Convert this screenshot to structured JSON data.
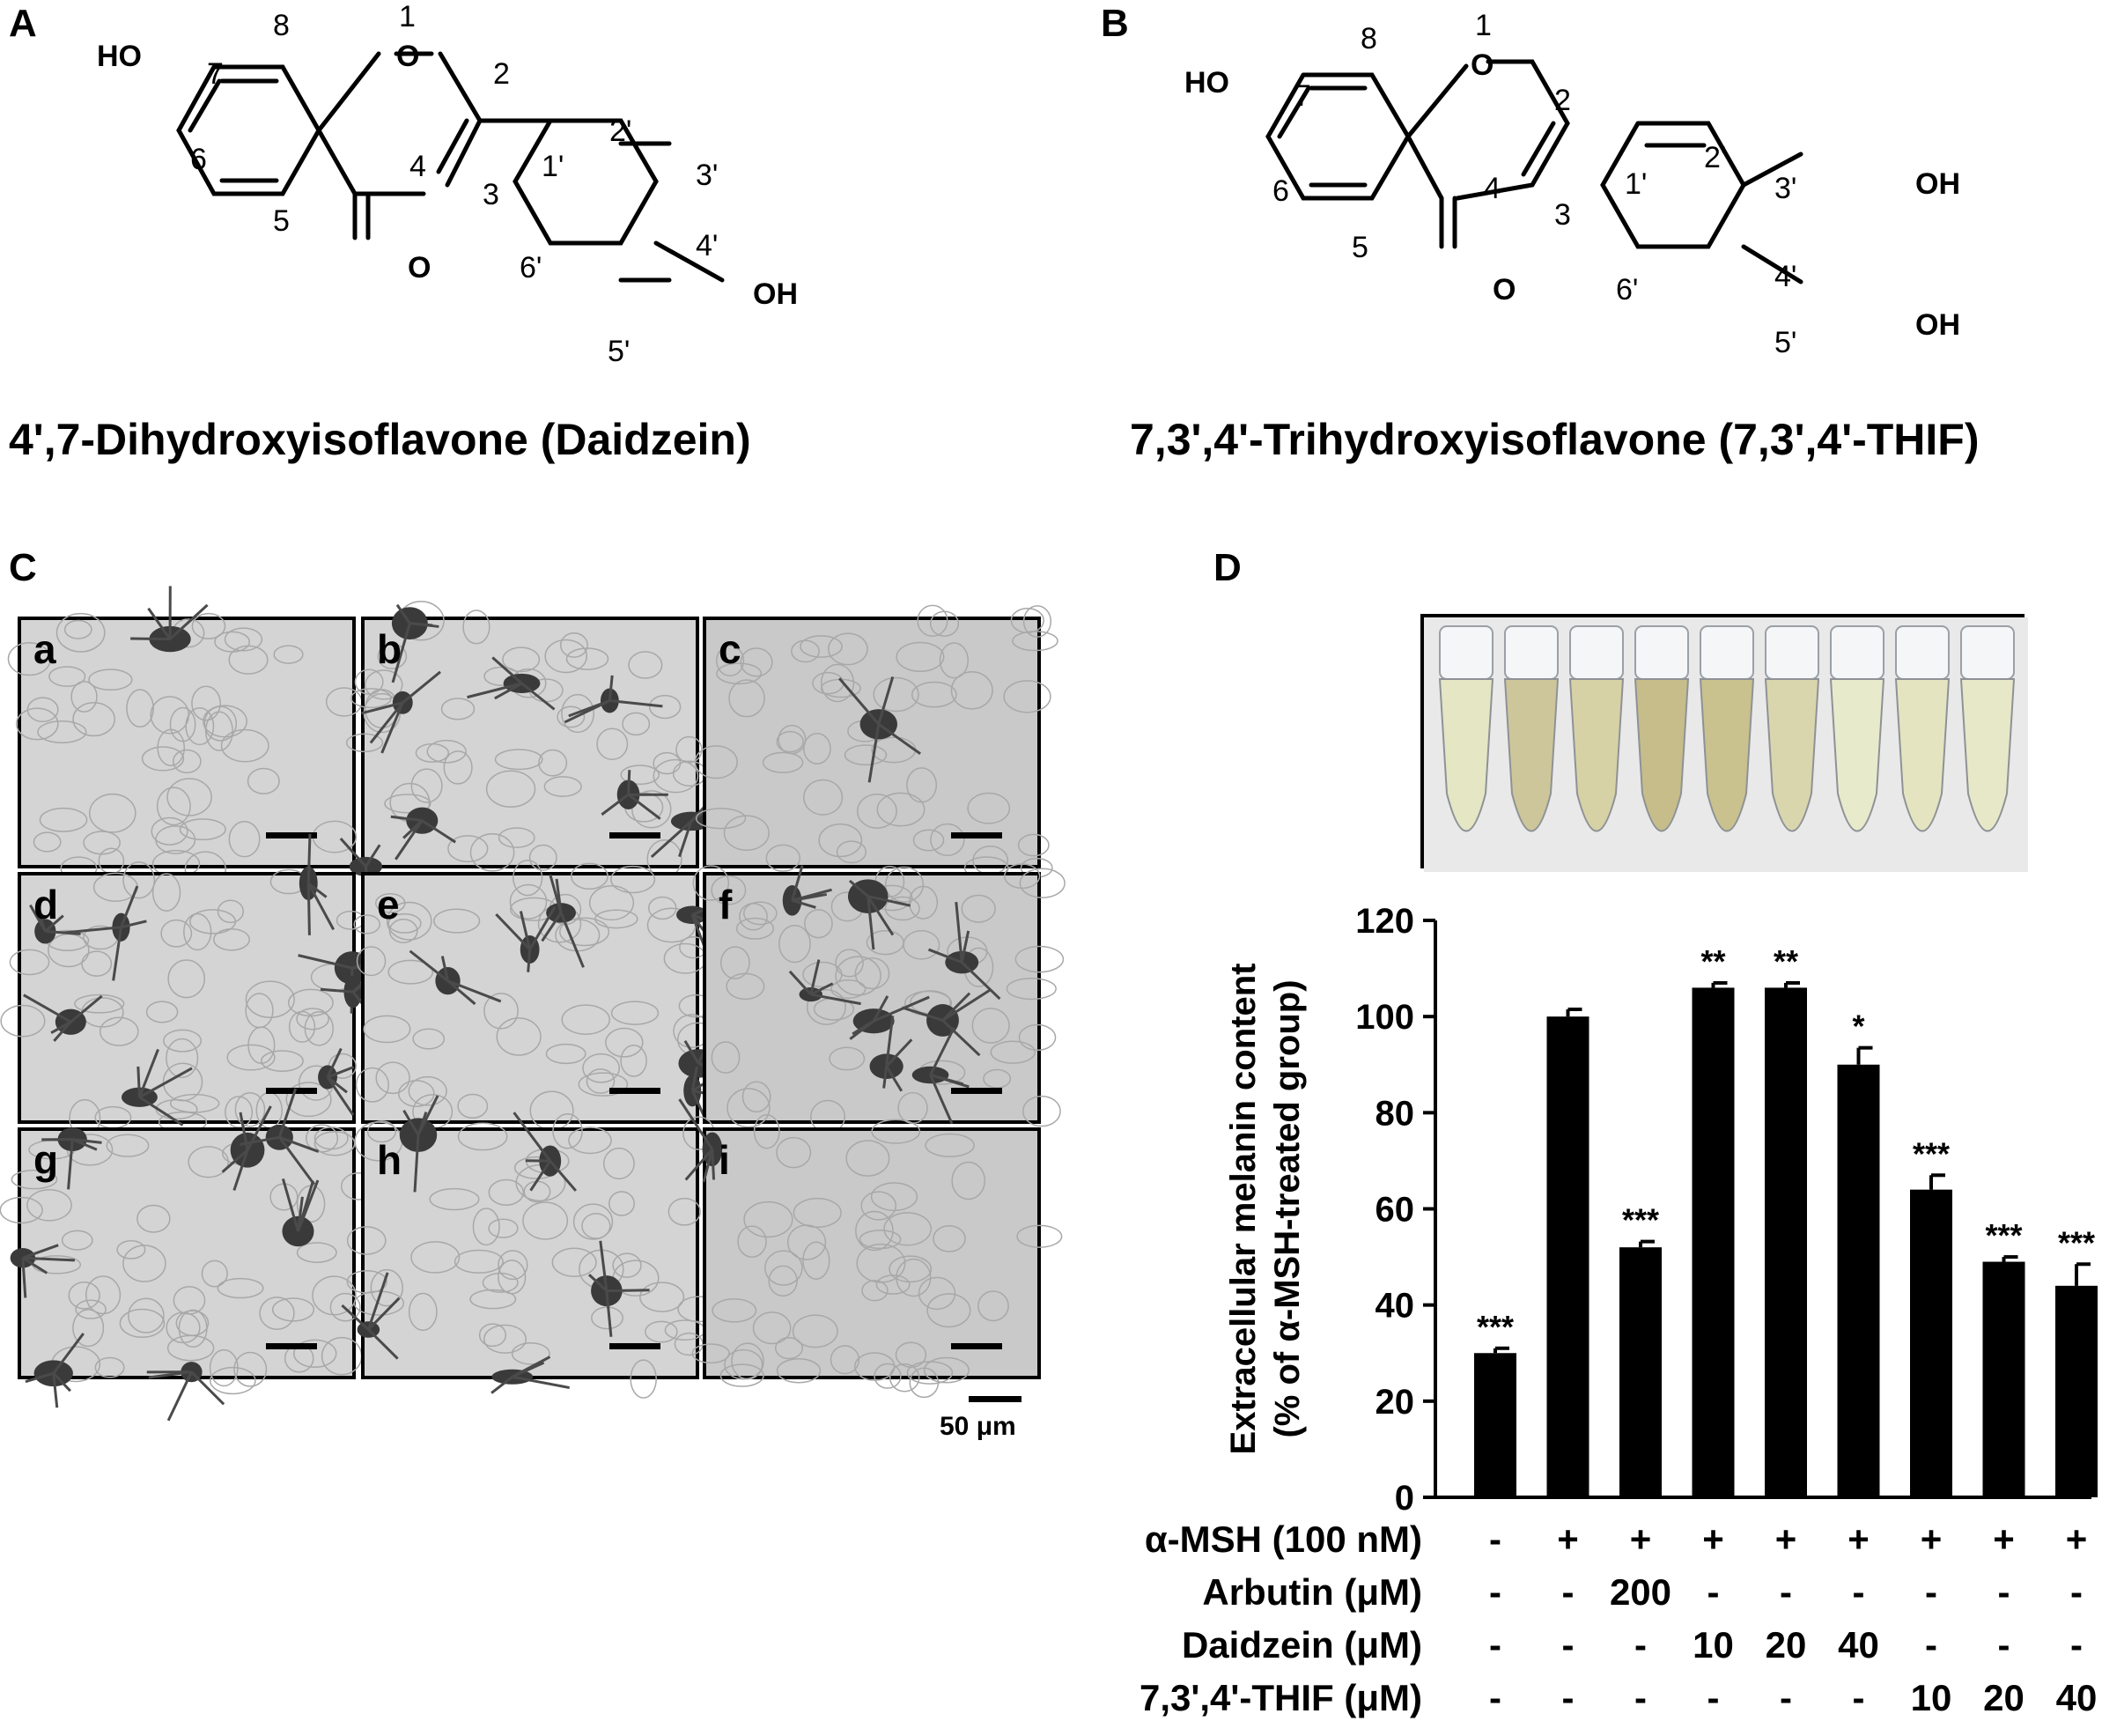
{
  "panels": {
    "A": {
      "letter": "A",
      "title": "4',7-Dihydroxyisoflavone (Daidzein)",
      "labels": [
        "1",
        "2",
        "3",
        "4",
        "5",
        "6",
        "7",
        "8",
        "1'",
        "2'",
        "3'",
        "4'",
        "5'",
        "6'",
        "HO",
        "O",
        "O",
        "OH"
      ]
    },
    "B": {
      "letter": "B",
      "title": "7,3',4'-Trihydroxyisoflavone (7,3',4'-THIF)",
      "labels": [
        "1",
        "2",
        "3",
        "4",
        "5",
        "6",
        "7",
        "8",
        "1'",
        "2'",
        "3'",
        "4'",
        "5'",
        "6'",
        "HO",
        "O",
        "O",
        "OH",
        "OH"
      ]
    },
    "C": {
      "letter": "C",
      "subpanels": [
        "a",
        "b",
        "c",
        "d",
        "e",
        "f",
        "g",
        "h",
        "i"
      ],
      "scale_label": "50 μm"
    },
    "D": {
      "letter": "D"
    }
  },
  "chart_data": {
    "type": "bar",
    "ylabel_line1": "Extracellular melanin content",
    "ylabel_line2": "(% of α-MSH-treated group)",
    "ylim": [
      0,
      120
    ],
    "yticks": [
      "0",
      "20",
      "40",
      "60",
      "80",
      "100",
      "120"
    ],
    "values": [
      30,
      100,
      52,
      106,
      106,
      90,
      64,
      49,
      44
    ],
    "errors": [
      1,
      1.5,
      1.2,
      1,
      1,
      3.5,
      3,
      1,
      4.5
    ],
    "significance": [
      "***",
      "",
      "***",
      "**",
      "**",
      "*",
      "***",
      "***",
      "***"
    ],
    "treatment_rows": [
      {
        "label": "α-MSH (100 nM)",
        "values": [
          "-",
          "+",
          "+",
          "+",
          "+",
          "+",
          "+",
          "+",
          "+"
        ]
      },
      {
        "label": "Arbutin (μM)",
        "values": [
          "-",
          "-",
          "200",
          "-",
          "-",
          "-",
          "-",
          "-",
          "-"
        ]
      },
      {
        "label": "Daidzein (μM)",
        "values": [
          "-",
          "-",
          "-",
          "10",
          "20",
          "40",
          "-",
          "-",
          "-"
        ]
      },
      {
        "label": "7,3',4'-THIF (μM)",
        "values": [
          "-",
          "-",
          "-",
          "-",
          "-",
          "-",
          "10",
          "20",
          "40"
        ]
      }
    ]
  }
}
